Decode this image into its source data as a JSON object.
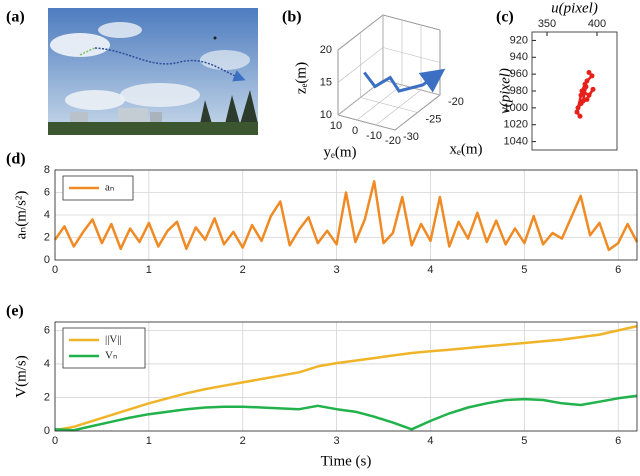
{
  "chart_data": [
    {
      "type": "image",
      "label": "(a)"
    },
    {
      "type": "line3d",
      "label": "(b)",
      "xlabel": "xₑ(m)",
      "ylabel": "yₑ(m)",
      "zlabel": "zₑ(m)",
      "xlim": [
        -30,
        -20
      ],
      "ylim": [
        -20,
        10
      ],
      "zlim": [
        10,
        20
      ],
      "xticks": [
        -30,
        -25,
        -20
      ],
      "yticks": [
        -20,
        -10,
        0,
        10
      ],
      "zticks": [
        10,
        15,
        20
      ],
      "series": [
        {
          "color": "#3a6fc4",
          "x": [
            -25,
            -26,
            -26,
            -27,
            -23,
            -21
          ],
          "y": [
            8,
            0,
            -8,
            -15,
            -18,
            -20
          ],
          "z": [
            14,
            13,
            15,
            14,
            13,
            13.5
          ]
        }
      ]
    },
    {
      "type": "scatter",
      "label": "(c)",
      "xlabel": "u(pixel)",
      "ylabel": "v(pixel)",
      "xlim": [
        335,
        420
      ],
      "ylim": [
        1050,
        910
      ],
      "xticks": [
        350,
        400
      ],
      "yticks": [
        920,
        940,
        960,
        980,
        1000,
        1020,
        1040
      ],
      "color": "#e8201a",
      "x": [
        392,
        395,
        390,
        388,
        385,
        392,
        396,
        390,
        384,
        381,
        386,
        389,
        384,
        380,
        383
      ],
      "y": [
        958,
        962,
        968,
        972,
        980,
        985,
        978,
        990,
        995,
        1000,
        992,
        975,
        985,
        1005,
        1010
      ]
    },
    {
      "type": "line",
      "label": "(d)",
      "ylabel": "aₙ(m/s²)",
      "grid": true,
      "legend": "upper left",
      "xlim": [
        0,
        6.2
      ],
      "ylim": [
        0,
        8
      ],
      "xticks": [
        0,
        1,
        2,
        3,
        4,
        5,
        6
      ],
      "yticks": [
        0,
        2,
        4,
        6,
        8
      ],
      "x": [
        0,
        0.1,
        0.2,
        0.3,
        0.4,
        0.5,
        0.6,
        0.7,
        0.8,
        0.9,
        1.0,
        1.1,
        1.2,
        1.3,
        1.4,
        1.5,
        1.6,
        1.7,
        1.8,
        1.9,
        2.0,
        2.1,
        2.2,
        2.3,
        2.4,
        2.5,
        2.6,
        2.7,
        2.8,
        2.9,
        3.0,
        3.1,
        3.2,
        3.3,
        3.4,
        3.5,
        3.6,
        3.7,
        3.8,
        3.9,
        4.0,
        4.1,
        4.2,
        4.3,
        4.4,
        4.5,
        4.6,
        4.7,
        4.8,
        4.9,
        5.0,
        5.1,
        5.2,
        5.3,
        5.4,
        5.5,
        5.6,
        5.7,
        5.8,
        5.9,
        6.0,
        6.1,
        6.2
      ],
      "series": [
        {
          "name": "aₙ",
          "color": "#f08a24",
          "values": [
            1.8,
            3.0,
            1.2,
            2.5,
            3.6,
            1.5,
            3.2,
            1.0,
            2.8,
            1.6,
            3.3,
            1.2,
            2.6,
            3.4,
            1.0,
            2.9,
            1.8,
            3.7,
            1.4,
            2.5,
            1.1,
            3.1,
            1.7,
            3.9,
            5.2,
            1.3,
            2.7,
            3.8,
            1.5,
            2.6,
            1.4,
            6.0,
            1.6,
            3.6,
            7.0,
            1.5,
            2.4,
            5.6,
            1.3,
            3.2,
            1.7,
            5.6,
            1.2,
            3.4,
            1.9,
            4.2,
            1.6,
            3.5,
            1.4,
            2.8,
            1.5,
            3.9,
            1.4,
            2.4,
            1.9,
            3.8,
            5.7,
            2.2,
            3.3,
            0.9,
            1.5,
            3.2,
            1.6
          ]
        }
      ]
    },
    {
      "type": "line",
      "label": "(e)",
      "ylabel": "V(m/s)",
      "xlabel": "Time (s)",
      "grid": true,
      "legend": "upper left",
      "xlim": [
        0,
        6.2
      ],
      "ylim": [
        0,
        6.5
      ],
      "xticks": [
        0,
        1,
        2,
        3,
        4,
        5,
        6
      ],
      "yticks": [
        0,
        2,
        4,
        6
      ],
      "x": [
        0,
        0.2,
        0.4,
        0.6,
        0.8,
        1.0,
        1.2,
        1.4,
        1.6,
        1.8,
        2.0,
        2.2,
        2.4,
        2.6,
        2.8,
        3.0,
        3.2,
        3.4,
        3.6,
        3.8,
        4.0,
        4.2,
        4.4,
        4.6,
        4.8,
        5.0,
        5.2,
        5.4,
        5.6,
        5.8,
        6.0,
        6.2
      ],
      "series": [
        {
          "name": "||V||",
          "color": "#f0b429",
          "values": [
            0.05,
            0.25,
            0.6,
            0.95,
            1.3,
            1.65,
            1.95,
            2.25,
            2.5,
            2.7,
            2.9,
            3.1,
            3.3,
            3.5,
            3.85,
            4.05,
            4.2,
            4.35,
            4.5,
            4.65,
            4.75,
            4.85,
            4.95,
            5.05,
            5.15,
            5.25,
            5.35,
            5.45,
            5.6,
            5.75,
            6.0,
            6.25
          ]
        },
        {
          "name": "Vₙ",
          "color": "#22b24c",
          "values": [
            0.1,
            0.05,
            0.3,
            0.55,
            0.8,
            1.0,
            1.15,
            1.3,
            1.4,
            1.45,
            1.45,
            1.4,
            1.35,
            1.3,
            1.5,
            1.3,
            1.15,
            0.85,
            0.5,
            0.1,
            0.6,
            1.05,
            1.4,
            1.65,
            1.85,
            1.9,
            1.85,
            1.65,
            1.55,
            1.75,
            1.95,
            2.1
          ]
        }
      ]
    }
  ]
}
